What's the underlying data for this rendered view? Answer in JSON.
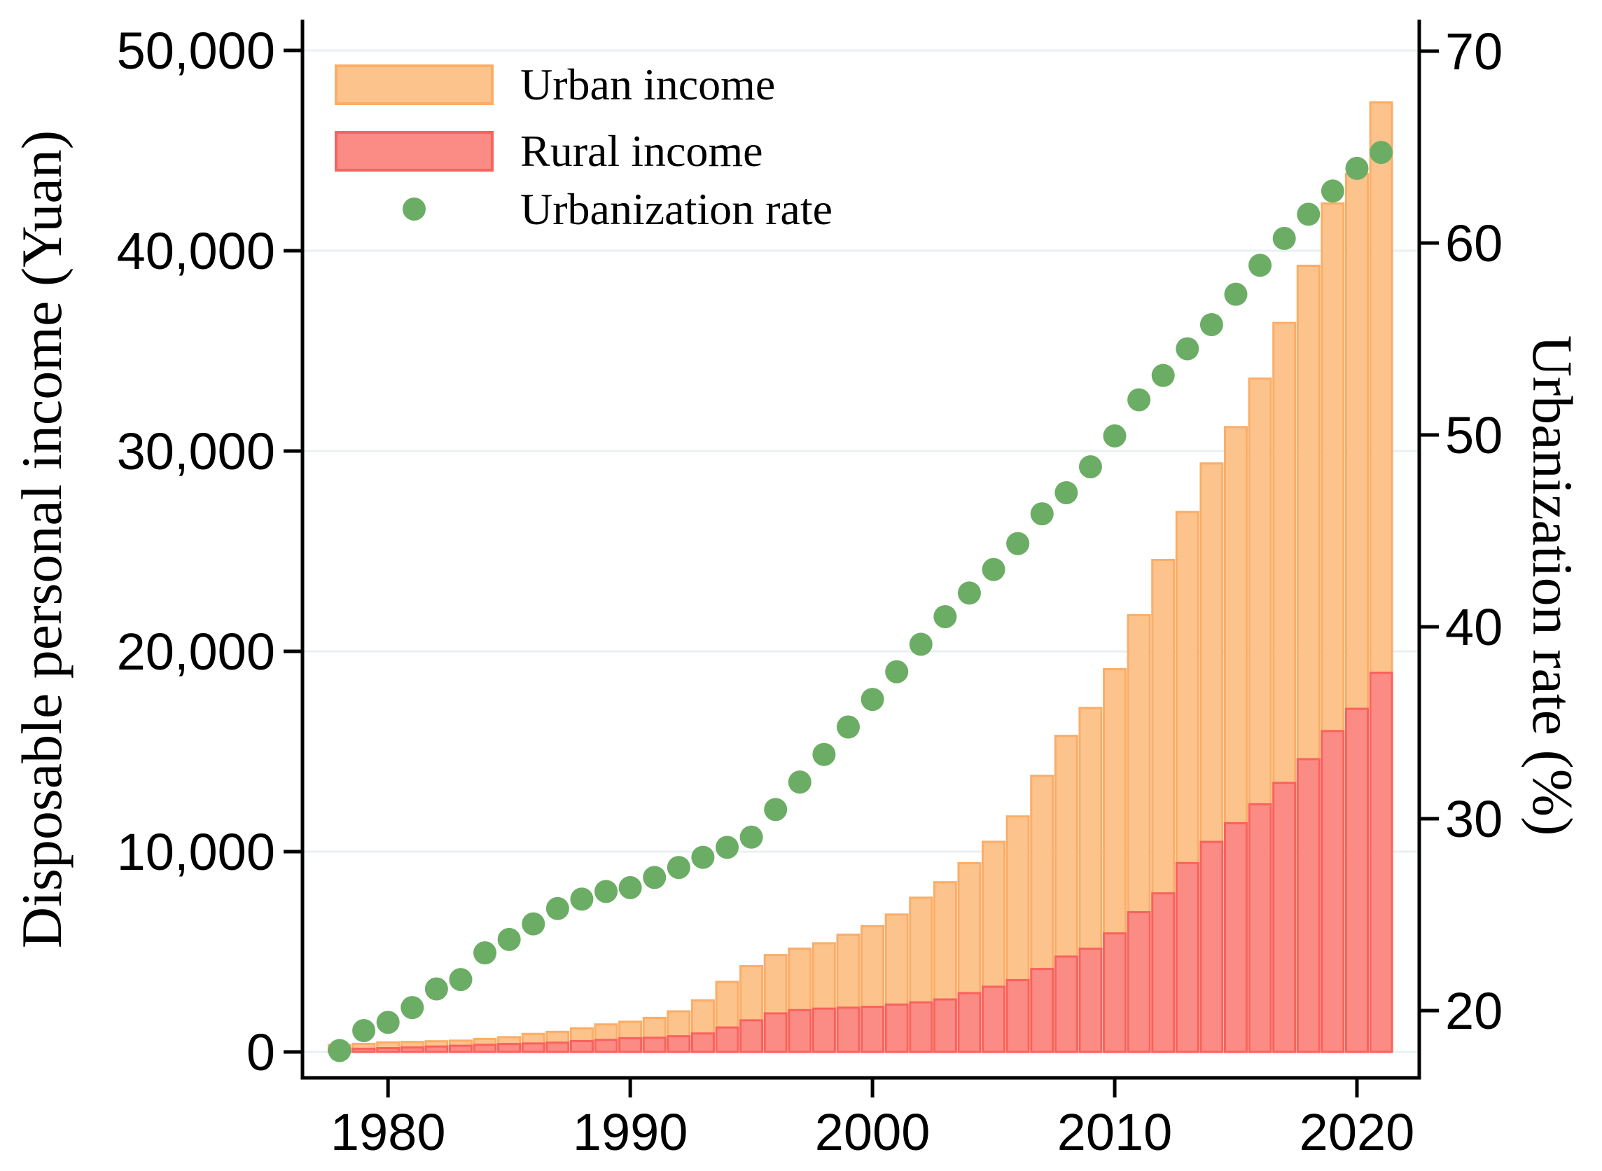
{
  "chart_data": {
    "type": "bar+scatter",
    "x": [
      1978,
      1979,
      1980,
      1981,
      1982,
      1983,
      1984,
      1985,
      1986,
      1987,
      1988,
      1989,
      1990,
      1991,
      1992,
      1993,
      1994,
      1995,
      1996,
      1997,
      1998,
      1999,
      2000,
      2001,
      2002,
      2003,
      2004,
      2005,
      2006,
      2007,
      2008,
      2009,
      2010,
      2011,
      2012,
      2013,
      2014,
      2015,
      2016,
      2017,
      2018,
      2019,
      2020,
      2021
    ],
    "series": [
      {
        "name": "Urban income",
        "type": "bar",
        "axis": "left",
        "fill": "#FDC38C",
        "border": "#FBAD67",
        "values": [
          343.4,
          405.0,
          477.6,
          500.4,
          535.3,
          564.6,
          652.1,
          739.1,
          900.9,
          1002.1,
          1180.2,
          1373.9,
          1510.2,
          1700.6,
          2026.6,
          2577.4,
          3496.2,
          4283.0,
          4838.9,
          5160.3,
          5425.1,
          5854.0,
          6280.0,
          6859.6,
          7702.8,
          8472.2,
          9421.6,
          10493.0,
          11759.5,
          13785.8,
          15780.8,
          17174.7,
          19109.4,
          21809.8,
          24564.7,
          26955.1,
          29381.0,
          31194.8,
          33616.2,
          36396.2,
          39250.8,
          42358.8,
          43833.8,
          47411.9
        ]
      },
      {
        "name": "Rural income",
        "type": "bar",
        "axis": "left",
        "fill": "#FB8B85",
        "border": "#F9625D",
        "values": [
          133.6,
          160.2,
          191.3,
          223.4,
          270.1,
          309.8,
          355.3,
          397.6,
          423.8,
          462.6,
          544.9,
          601.5,
          686.3,
          708.6,
          784.0,
          921.6,
          1221.0,
          1577.7,
          1926.1,
          2090.1,
          2162.0,
          2210.3,
          2253.4,
          2366.4,
          2475.6,
          2622.2,
          2936.4,
          3254.9,
          3587.0,
          4140.4,
          4760.6,
          5153.2,
          5919.0,
          6977.3,
          7916.6,
          9429.6,
          10488.9,
          11421.7,
          12363.4,
          13432.4,
          14617.0,
          16020.7,
          17131.5,
          18930.9
        ]
      },
      {
        "name": "Urbanization rate",
        "type": "scatter",
        "axis": "right",
        "fill": "#6BAD64",
        "values": [
          17.92,
          18.96,
          19.39,
          20.16,
          21.13,
          21.62,
          23.01,
          23.71,
          24.52,
          25.32,
          25.81,
          26.21,
          26.41,
          26.94,
          27.46,
          27.99,
          28.51,
          29.04,
          30.48,
          31.91,
          33.35,
          34.78,
          36.22,
          37.66,
          39.09,
          40.53,
          41.76,
          42.99,
          44.34,
          45.89,
          46.99,
          48.34,
          49.95,
          51.83,
          53.1,
          54.49,
          55.75,
          57.33,
          58.84,
          60.24,
          61.5,
          62.71,
          63.89,
          64.72
        ]
      }
    ],
    "axes": {
      "left": {
        "label": "Disposable personal income (Yuan)",
        "min": 0,
        "max": 50000,
        "ticks": [
          0,
          10000,
          20000,
          30000,
          40000,
          50000
        ],
        "tick_labels": [
          "0",
          "10,000",
          "20,000",
          "30,000",
          "40,000",
          "50,000"
        ]
      },
      "right": {
        "label": "Urbanization rate (%)",
        "min": 16.4,
        "max": 72,
        "ticks": [
          20,
          30,
          40,
          50,
          60,
          70
        ],
        "tick_labels": [
          "20",
          "30",
          "40",
          "50",
          "60",
          "70"
        ]
      },
      "x": {
        "ticks": [
          1980,
          1990,
          2000,
          2010,
          2020
        ],
        "tick_labels": [
          "1980",
          "1990",
          "2000",
          "2010",
          "2020"
        ]
      }
    },
    "legend": {
      "position": "top-left-inside",
      "items": [
        "Urban income",
        "Rural income",
        "Urbanization rate"
      ]
    },
    "grid": true,
    "colors": {
      "gridline": "#E8F0F1",
      "axis": "#000000",
      "background": "#FFFFFF",
      "urban_fill": "#FDC38C",
      "urban_border": "#FBAD67",
      "rural_fill": "#FB8B85",
      "rural_border": "#F9625D",
      "dot_green": "#6BAD64"
    }
  }
}
